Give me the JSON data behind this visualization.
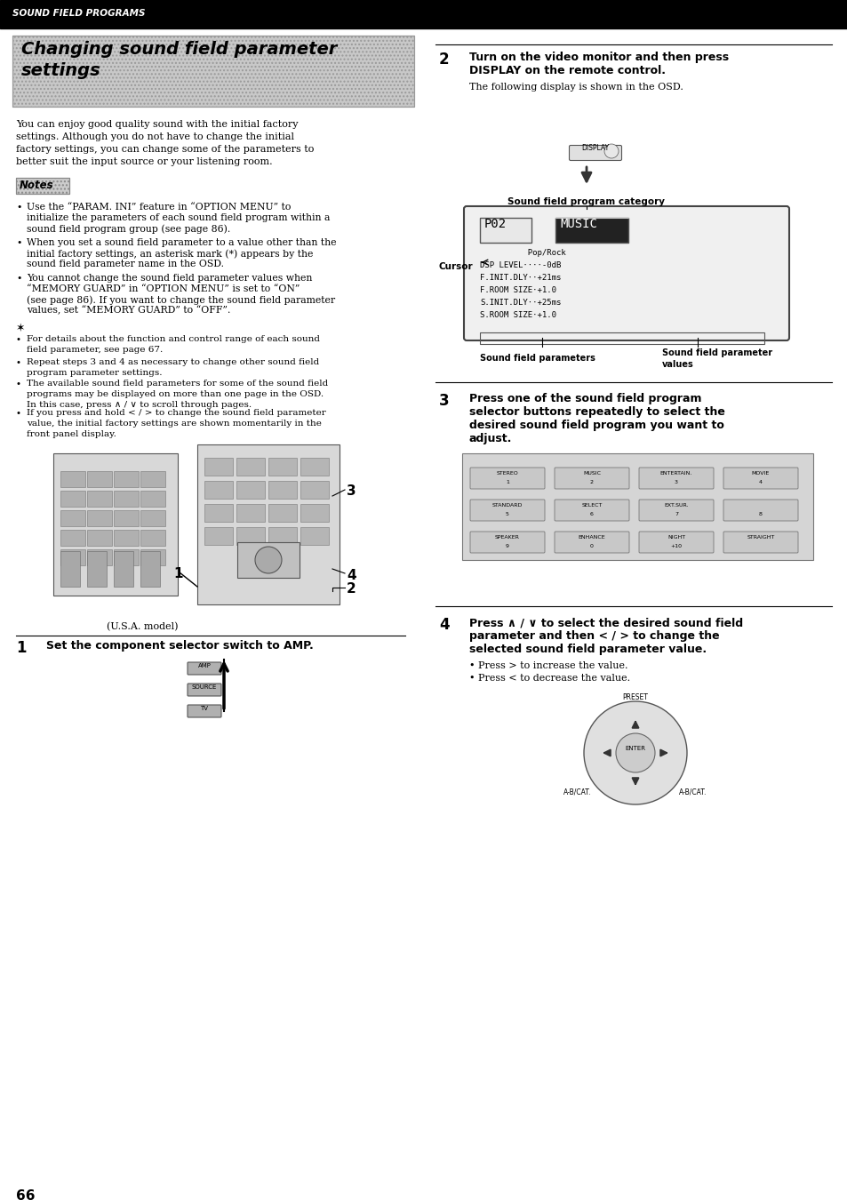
{
  "page_number": "66",
  "header_text": "SOUND FIELD PROGRAMS",
  "header_bg": "#000000",
  "header_text_color": "#ffffff",
  "title_line1": "Changing sound field parameter",
  "title_line2": "settings",
  "intro_text_lines": [
    "You can enjoy good quality sound with the initial factory",
    "settings. Although you do not have to change the initial",
    "factory settings, you can change some of the parameters to",
    "better suit the input source or your listening room."
  ],
  "notes_label": "Notes",
  "note1": "Use the “PARAM. INI” feature in “OPTION MENU” to initialize the parameters of each sound field program within a sound field program group (see page 86).",
  "note2": "When you set a sound field parameter to a value other than the initial factory settings, an asterisk mark (*) appears by the sound field parameter name in the OSD.",
  "note3": "You cannot change the sound field parameter values when “MEMORY GUARD” in “OPTION MENU” is set to “ON” (see page 86). If you want to change the sound field parameter values, set “MEMORY GUARD” to “OFF”.",
  "tip1": "For details about the function and control range of each sound field parameter, see page 67.",
  "tip2": "Repeat steps 3 and 4 as necessary to change other sound field program parameter settings.",
  "tip3": "The available sound field parameters for some of the sound field programs may be displayed on more than one page in the OSD. In this case, press ∧ / ∨ to scroll through pages.",
  "tip4": "If you press and hold < / > to change the sound field parameter value, the initial factory settings are shown momentarily in the front panel display.",
  "usa_model_label": "(U.S.A. model)",
  "step1_text": "Set the component selector switch to AMP.",
  "step2_title1": "Turn on the video monitor and then press",
  "step2_title2": "DISPLAY on the remote control.",
  "step2_sub": "The following display is shown in the OSD.",
  "step3_text1": "Press one of the sound field program",
  "step3_text2": "selector buttons repeatedly to select the",
  "step3_text3": "desired sound field program you want to",
  "step3_text4": "adjust.",
  "step4_title1": "Press ∧ / ∨ to select the desired sound field",
  "step4_title2": "parameter and then < / > to change the",
  "step4_title3": "selected sound field parameter value.",
  "step4_b1": "Press > to increase the value.",
  "step4_b2": "Press < to decrease the value.",
  "bg_color": "#ffffff"
}
